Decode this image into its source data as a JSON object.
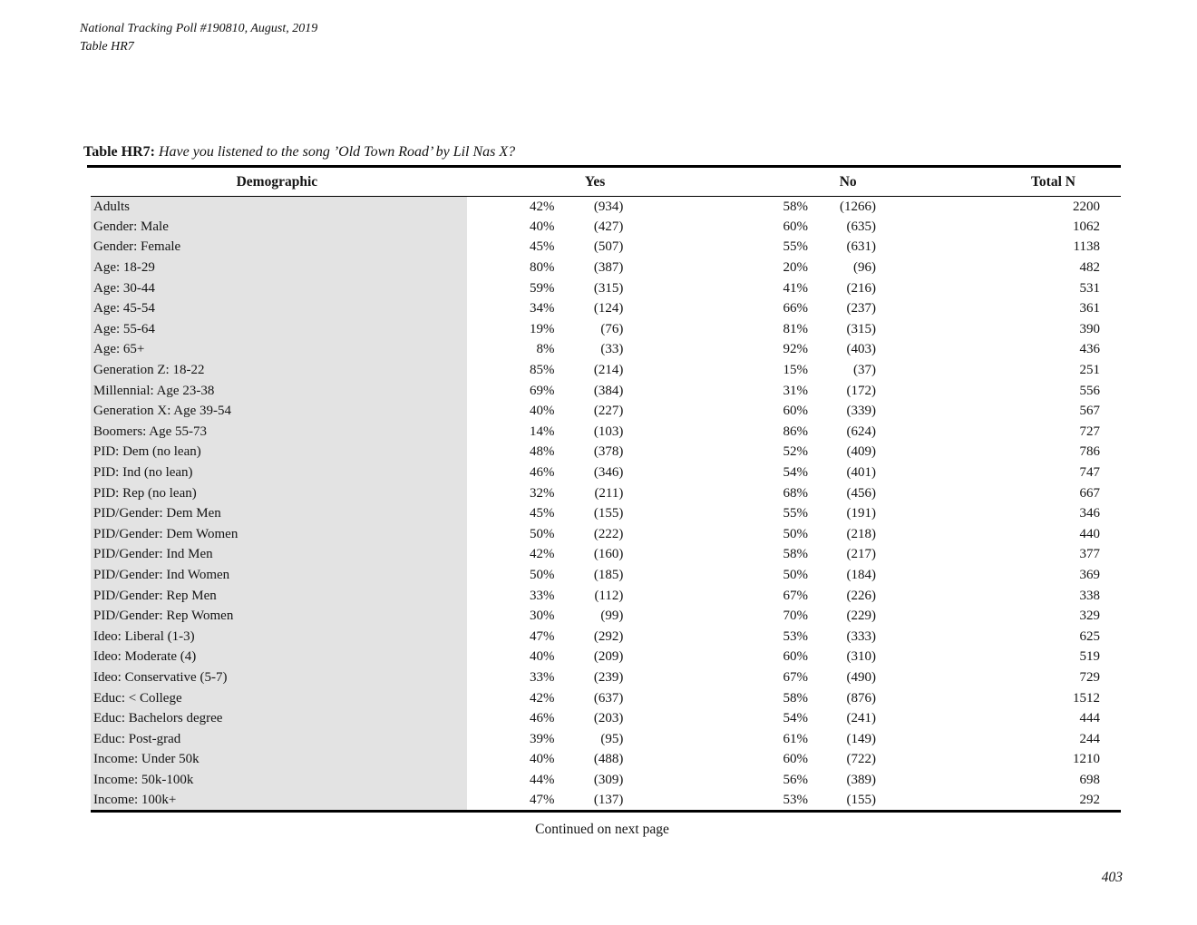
{
  "header": {
    "line1": "National Tracking Poll #190810, August, 2019",
    "line2": "Table HR7"
  },
  "table": {
    "title_label": "Table HR7:",
    "title_question": "Have you listened to the song ’Old Town Road’ by Lil Nas X?",
    "columns": {
      "demographic": "Demographic",
      "yes": "Yes",
      "no": "No",
      "total": "Total N"
    },
    "rows": [
      {
        "demographic": "Adults",
        "yes_pct": "42%",
        "yes_n": "(934)",
        "no_pct": "58%",
        "no_n": "(1266)",
        "total": "2200"
      },
      {
        "demographic": "Gender: Male",
        "yes_pct": "40%",
        "yes_n": "(427)",
        "no_pct": "60%",
        "no_n": "(635)",
        "total": "1062"
      },
      {
        "demographic": "Gender: Female",
        "yes_pct": "45%",
        "yes_n": "(507)",
        "no_pct": "55%",
        "no_n": "(631)",
        "total": "1138"
      },
      {
        "demographic": "Age: 18-29",
        "yes_pct": "80%",
        "yes_n": "(387)",
        "no_pct": "20%",
        "no_n": "(96)",
        "total": "482"
      },
      {
        "demographic": "Age: 30-44",
        "yes_pct": "59%",
        "yes_n": "(315)",
        "no_pct": "41%",
        "no_n": "(216)",
        "total": "531"
      },
      {
        "demographic": "Age: 45-54",
        "yes_pct": "34%",
        "yes_n": "(124)",
        "no_pct": "66%",
        "no_n": "(237)",
        "total": "361"
      },
      {
        "demographic": "Age: 55-64",
        "yes_pct": "19%",
        "yes_n": "(76)",
        "no_pct": "81%",
        "no_n": "(315)",
        "total": "390"
      },
      {
        "demographic": "Age: 65+",
        "yes_pct": "8%",
        "yes_n": "(33)",
        "no_pct": "92%",
        "no_n": "(403)",
        "total": "436"
      },
      {
        "demographic": "Generation Z: 18-22",
        "yes_pct": "85%",
        "yes_n": "(214)",
        "no_pct": "15%",
        "no_n": "(37)",
        "total": "251"
      },
      {
        "demographic": "Millennial: Age 23-38",
        "yes_pct": "69%",
        "yes_n": "(384)",
        "no_pct": "31%",
        "no_n": "(172)",
        "total": "556"
      },
      {
        "demographic": "Generation X: Age 39-54",
        "yes_pct": "40%",
        "yes_n": "(227)",
        "no_pct": "60%",
        "no_n": "(339)",
        "total": "567"
      },
      {
        "demographic": "Boomers: Age 55-73",
        "yes_pct": "14%",
        "yes_n": "(103)",
        "no_pct": "86%",
        "no_n": "(624)",
        "total": "727"
      },
      {
        "demographic": "PID: Dem (no lean)",
        "yes_pct": "48%",
        "yes_n": "(378)",
        "no_pct": "52%",
        "no_n": "(409)",
        "total": "786"
      },
      {
        "demographic": "PID: Ind (no lean)",
        "yes_pct": "46%",
        "yes_n": "(346)",
        "no_pct": "54%",
        "no_n": "(401)",
        "total": "747"
      },
      {
        "demographic": "PID: Rep (no lean)",
        "yes_pct": "32%",
        "yes_n": "(211)",
        "no_pct": "68%",
        "no_n": "(456)",
        "total": "667"
      },
      {
        "demographic": "PID/Gender: Dem Men",
        "yes_pct": "45%",
        "yes_n": "(155)",
        "no_pct": "55%",
        "no_n": "(191)",
        "total": "346"
      },
      {
        "demographic": "PID/Gender: Dem Women",
        "yes_pct": "50%",
        "yes_n": "(222)",
        "no_pct": "50%",
        "no_n": "(218)",
        "total": "440"
      },
      {
        "demographic": "PID/Gender: Ind Men",
        "yes_pct": "42%",
        "yes_n": "(160)",
        "no_pct": "58%",
        "no_n": "(217)",
        "total": "377"
      },
      {
        "demographic": "PID/Gender: Ind Women",
        "yes_pct": "50%",
        "yes_n": "(185)",
        "no_pct": "50%",
        "no_n": "(184)",
        "total": "369"
      },
      {
        "demographic": "PID/Gender: Rep Men",
        "yes_pct": "33%",
        "yes_n": "(112)",
        "no_pct": "67%",
        "no_n": "(226)",
        "total": "338"
      },
      {
        "demographic": "PID/Gender: Rep Women",
        "yes_pct": "30%",
        "yes_n": "(99)",
        "no_pct": "70%",
        "no_n": "(229)",
        "total": "329"
      },
      {
        "demographic": "Ideo: Liberal (1-3)",
        "yes_pct": "47%",
        "yes_n": "(292)",
        "no_pct": "53%",
        "no_n": "(333)",
        "total": "625"
      },
      {
        "demographic": "Ideo: Moderate (4)",
        "yes_pct": "40%",
        "yes_n": "(209)",
        "no_pct": "60%",
        "no_n": "(310)",
        "total": "519"
      },
      {
        "demographic": "Ideo: Conservative (5-7)",
        "yes_pct": "33%",
        "yes_n": "(239)",
        "no_pct": "67%",
        "no_n": "(490)",
        "total": "729"
      },
      {
        "demographic": "Educ: < College",
        "yes_pct": "42%",
        "yes_n": "(637)",
        "no_pct": "58%",
        "no_n": "(876)",
        "total": "1512"
      },
      {
        "demographic": "Educ: Bachelors degree",
        "yes_pct": "46%",
        "yes_n": "(203)",
        "no_pct": "54%",
        "no_n": "(241)",
        "total": "444"
      },
      {
        "demographic": "Educ: Post-grad",
        "yes_pct": "39%",
        "yes_n": "(95)",
        "no_pct": "61%",
        "no_n": "(149)",
        "total": "244"
      },
      {
        "demographic": "Income: Under 50k",
        "yes_pct": "40%",
        "yes_n": "(488)",
        "no_pct": "60%",
        "no_n": "(722)",
        "total": "1210"
      },
      {
        "demographic": "Income: 50k-100k",
        "yes_pct": "44%",
        "yes_n": "(309)",
        "no_pct": "56%",
        "no_n": "(389)",
        "total": "698"
      },
      {
        "demographic": "Income: 100k+",
        "yes_pct": "47%",
        "yes_n": "(137)",
        "no_pct": "53%",
        "no_n": "(155)",
        "total": "292"
      }
    ],
    "continued_note": "Continued on next page"
  },
  "footer": {
    "page_number": "403"
  }
}
